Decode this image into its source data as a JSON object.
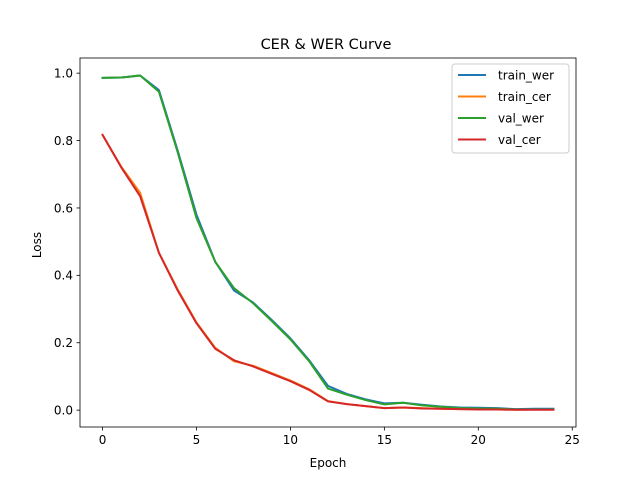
{
  "chart_data": {
    "type": "line",
    "title": "CER & WER Curve",
    "xlabel": "Epoch",
    "ylabel": "Loss",
    "xlim": [
      -1.2,
      25.2
    ],
    "ylim": [
      -0.05,
      1.045
    ],
    "xticks": [
      0,
      5,
      10,
      15,
      20,
      25
    ],
    "yticks": [
      0.0,
      0.2,
      0.4,
      0.6,
      0.8,
      1.0
    ],
    "xtick_labels": [
      "0",
      "5",
      "10",
      "15",
      "20",
      "25"
    ],
    "ytick_labels": [
      "0.0",
      "0.2",
      "0.4",
      "0.6",
      "0.8",
      "1.0"
    ],
    "grid": false,
    "legend_position": "top-right",
    "x": [
      0,
      1,
      2,
      3,
      4,
      5,
      6,
      7,
      8,
      9,
      10,
      11,
      12,
      13,
      14,
      15,
      16,
      17,
      18,
      19,
      20,
      21,
      22,
      23,
      24
    ],
    "series": [
      {
        "name": "train_wer",
        "color": "#1f77b4",
        "values": [
          0.986,
          0.987,
          0.993,
          0.95,
          0.77,
          0.58,
          0.44,
          0.355,
          0.32,
          0.268,
          0.213,
          0.148,
          0.072,
          0.048,
          0.032,
          0.02,
          0.022,
          0.016,
          0.011,
          0.008,
          0.007,
          0.006,
          0.003,
          0.004,
          0.004
        ]
      },
      {
        "name": "train_cer",
        "color": "#ff7f0e",
        "values": [
          0.817,
          0.722,
          0.645,
          0.467,
          0.358,
          0.26,
          0.185,
          0.145,
          0.132,
          0.11,
          0.088,
          0.062,
          0.027,
          0.018,
          0.012,
          0.006,
          0.008,
          0.006,
          0.004,
          0.003,
          0.003,
          0.003,
          0.001,
          0.002,
          0.002
        ]
      },
      {
        "name": "val_wer",
        "color": "#2ca02c",
        "values": [
          0.986,
          0.987,
          0.993,
          0.945,
          0.765,
          0.57,
          0.44,
          0.362,
          0.318,
          0.265,
          0.21,
          0.145,
          0.064,
          0.046,
          0.03,
          0.017,
          0.022,
          0.014,
          0.01,
          0.006,
          0.005,
          0.004,
          0.002,
          0.002,
          0.002
        ]
      },
      {
        "name": "val_cer",
        "color": "#d62728",
        "values": [
          0.817,
          0.72,
          0.635,
          0.467,
          0.355,
          0.258,
          0.182,
          0.148,
          0.13,
          0.108,
          0.086,
          0.06,
          0.026,
          0.018,
          0.012,
          0.006,
          0.008,
          0.005,
          0.004,
          0.003,
          0.002,
          0.002,
          0.001,
          0.001,
          0.001
        ]
      }
    ]
  }
}
